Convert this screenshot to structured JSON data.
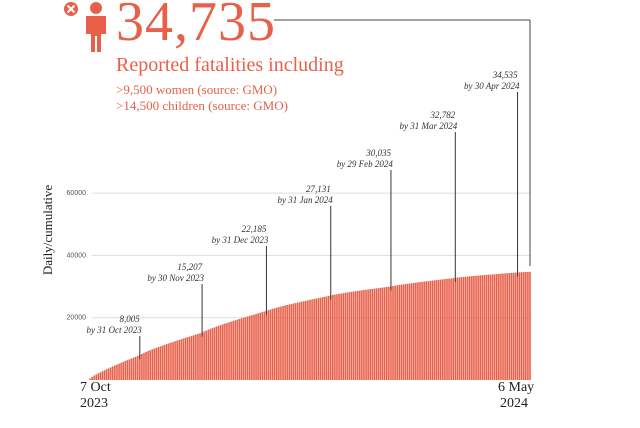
{
  "header": {
    "total": "34,735",
    "headline": "Reported fatalities including",
    "women": ">9,500 women (source: GMO)",
    "children": ">14,500 children (source: GMO)",
    "icons": [
      "close-icon",
      "person-icon"
    ]
  },
  "colors": {
    "accent": "#e8604a",
    "bar": "#e8604a"
  },
  "chart_data": {
    "type": "bar",
    "title": "34,735 Reported fatalities including",
    "ylabel": "Daily/cumulative",
    "xlabel": "",
    "x_start": [
      "7 Oct",
      "2023"
    ],
    "x_end": [
      "6 May",
      "2024"
    ],
    "ylim": [
      0,
      70000
    ],
    "yticks": [
      20000,
      40000,
      60000
    ],
    "ytick_labels": [
      "20000",
      "40000",
      "60000"
    ],
    "days": 213,
    "cumulative_series": [
      {
        "day": 0,
        "value": 500
      },
      {
        "day": 24,
        "value": 8005
      },
      {
        "day": 54,
        "value": 15207
      },
      {
        "day": 85,
        "value": 22185
      },
      {
        "day": 116,
        "value": 27131
      },
      {
        "day": 145,
        "value": 30035
      },
      {
        "day": 176,
        "value": 32782
      },
      {
        "day": 206,
        "value": 34535
      },
      {
        "day": 212,
        "value": 34735
      }
    ],
    "annotations": [
      {
        "day": 24,
        "value": "8,005",
        "date": "by 31 Oct 2023"
      },
      {
        "day": 54,
        "value": "15,207",
        "date": "by 30 Nov 2023"
      },
      {
        "day": 85,
        "value": "22,185",
        "date": "by 31 Dec 2023"
      },
      {
        "day": 116,
        "value": "27,131",
        "date": "by 31 Jan 2024"
      },
      {
        "day": 145,
        "value": "30,035",
        "date": "by 29 Feb 2024"
      },
      {
        "day": 176,
        "value": "32,782",
        "date": "by 31 Mar 2024"
      },
      {
        "day": 206,
        "value": "34,535",
        "date": "by 30 Apr 2024"
      }
    ]
  }
}
